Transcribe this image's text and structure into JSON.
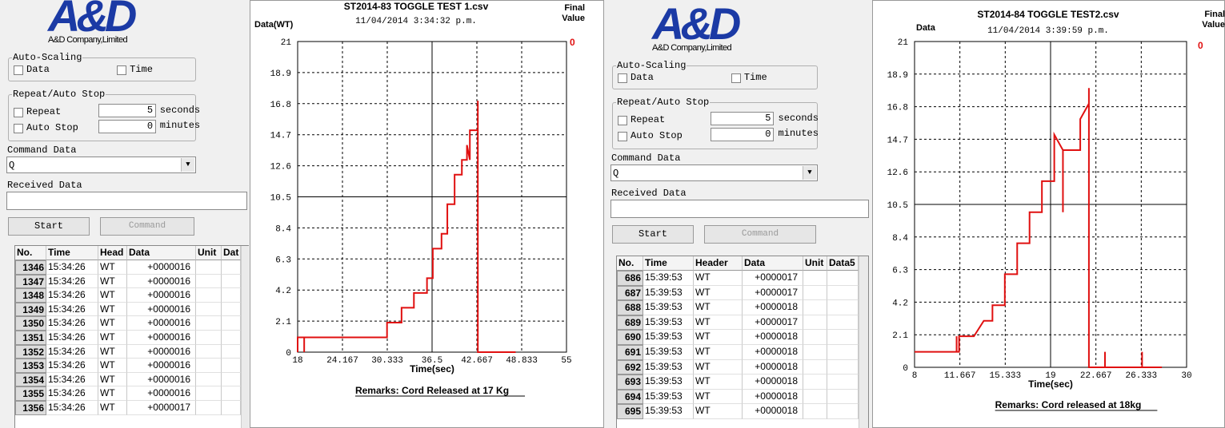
{
  "apps": [
    {
      "logo": "A&D",
      "company": "A&D Company,Limited",
      "auto_scaling": {
        "title": "Auto-Scaling",
        "data": "Data",
        "time": "Time"
      },
      "repeat": {
        "title": "Repeat/Auto Stop",
        "repeat": "Repeat",
        "repeat_value": 5,
        "repeat_unit": "seconds",
        "auto_stop": "Auto Stop",
        "auto_stop_value": 0,
        "auto_stop_unit": "minutes"
      },
      "command_data": {
        "label": "Command Data",
        "value": "Q"
      },
      "received_data": {
        "label": "Received Data"
      },
      "buttons": {
        "start": "Start",
        "command": "Command"
      },
      "table": {
        "columns": [
          "No.",
          "Time",
          "Head",
          "Data",
          "Unit",
          "Dat"
        ],
        "rows": [
          [
            1346,
            "15:34:26",
            "WT",
            "+0000016"
          ],
          [
            1347,
            "15:34:26",
            "WT",
            "+0000016"
          ],
          [
            1348,
            "15:34:26",
            "WT",
            "+0000016"
          ],
          [
            1349,
            "15:34:26",
            "WT",
            "+0000016"
          ],
          [
            1350,
            "15:34:26",
            "WT",
            "+0000016"
          ],
          [
            1351,
            "15:34:26",
            "WT",
            "+0000016"
          ],
          [
            1352,
            "15:34:26",
            "WT",
            "+0000016"
          ],
          [
            1353,
            "15:34:26",
            "WT",
            "+0000016"
          ],
          [
            1354,
            "15:34:26",
            "WT",
            "+0000016"
          ],
          [
            1355,
            "15:34:26",
            "WT",
            "+0000016"
          ],
          [
            1356,
            "15:34:26",
            "WT",
            "+0000017"
          ]
        ]
      },
      "chart": {
        "type": "line",
        "title": "ST2014-83 TOGGLE TEST 1.csv",
        "subtitle": "11/04/2014 3:34:32 p.m.",
        "y_label": "Data(WT)",
        "x_label": "Time(sec)",
        "final_value_label": "Final Value",
        "final_value": 0,
        "remarks": "Remarks: Cord Released at 17 Kg",
        "x": [
          18,
          18,
          18.9,
          18.9,
          18.9,
          30.3,
          30.3,
          32.3,
          32.3,
          34,
          34,
          35.8,
          35.8,
          36.6,
          36.6,
          37.8,
          37.8,
          38.6,
          38.6,
          39.6,
          39.6,
          40.6,
          40.6,
          41.3,
          41.3,
          41.7,
          41.7,
          42.8,
          42.8,
          42.8,
          48
        ],
        "series": [
          {
            "color": "#e01010",
            "values": [
              0,
              1,
              1,
              0,
              1,
              1,
              2,
              2,
              3,
              3,
              4,
              4,
              5,
              5,
              7,
              7,
              8,
              8,
              10,
              10,
              12,
              12,
              13,
              13,
              14,
              13,
              15,
              15,
              17,
              0,
              0
            ]
          }
        ],
        "xlim": [
          18,
          55
        ],
        "xticks": [
          18,
          24.167,
          30.333,
          36.5,
          42.667,
          48.833,
          55
        ],
        "ylim": [
          0,
          21
        ],
        "yticks": [
          0,
          2.1,
          4.2,
          6.3,
          8.4,
          10.5,
          12.6,
          14.7,
          16.8,
          18.9,
          21
        ],
        "grid": true
      }
    },
    {
      "logo": "A&D",
      "company": "A&D Company,Limited",
      "auto_scaling": {
        "title": "Auto-Scaling",
        "data": "Data",
        "time": "Time"
      },
      "repeat": {
        "title": "Repeat/Auto Stop",
        "repeat": "Repeat",
        "repeat_value": 5,
        "repeat_unit": "seconds",
        "auto_stop": "Auto Stop",
        "auto_stop_value": 0,
        "auto_stop_unit": "minutes"
      },
      "command_data": {
        "label": "Command Data",
        "value": "Q"
      },
      "received_data": {
        "label": "Received Data"
      },
      "buttons": {
        "start": "Start",
        "command": "Command"
      },
      "table": {
        "columns": [
          "No.",
          "Time",
          "Header",
          "Data",
          "Unit",
          "Data5"
        ],
        "rows": [
          [
            686,
            "15:39:53",
            "WT",
            "+0000017"
          ],
          [
            687,
            "15:39:53",
            "WT",
            "+0000017"
          ],
          [
            688,
            "15:39:53",
            "WT",
            "+0000018"
          ],
          [
            689,
            "15:39:53",
            "WT",
            "+0000017"
          ],
          [
            690,
            "15:39:53",
            "WT",
            "+0000018"
          ],
          [
            691,
            "15:39:53",
            "WT",
            "+0000018"
          ],
          [
            692,
            "15:39:53",
            "WT",
            "+0000018"
          ],
          [
            693,
            "15:39:53",
            "WT",
            "+0000018"
          ],
          [
            694,
            "15:39:53",
            "WT",
            "+0000018"
          ],
          [
            695,
            "15:39:53",
            "WT",
            "+0000018"
          ]
        ]
      },
      "chart": {
        "type": "line",
        "title": "ST2014-84 TOGGLE TEST2.csv",
        "subtitle": "11/04/2014 3:39:59 p.m.",
        "y_label": "Data",
        "x_label": "Time(sec)",
        "final_value_label": "Final Value",
        "final_value": 0,
        "remarks": "Remarks: Cord released at  18kg",
        "x": [
          8,
          11.4,
          11.4,
          11.4,
          11.6,
          11.6,
          12.8,
          13.6,
          14.3,
          14.3,
          15.3,
          15.3,
          16.3,
          16.3,
          17.3,
          17.3,
          18.3,
          18.3,
          19.3,
          19.3,
          20,
          20,
          20,
          21.4,
          21.4,
          22.1,
          22.1,
          22.1,
          23.4,
          23.4,
          23.4,
          26.4,
          26.4,
          26.4,
          28
        ],
        "series": [
          {
            "color": "#e01010",
            "values": [
              1,
              1,
              2,
              1,
              1,
              2,
              2,
              3,
              3,
              4,
              4,
              6,
              6,
              8,
              8,
              10,
              10,
              12,
              12,
              15,
              14,
              10,
              14,
              14,
              16,
              17,
              18,
              0,
              0,
              1,
              0,
              0,
              1,
              0,
              0
            ]
          }
        ],
        "xlim": [
          8,
          30
        ],
        "xticks": [
          8,
          11.667,
          15.333,
          19,
          22.667,
          26.333,
          30
        ],
        "ylim": [
          0,
          21
        ],
        "yticks": [
          0,
          2.1,
          4.2,
          6.3,
          8.4,
          10.5,
          12.6,
          14.7,
          16.8,
          18.9,
          21
        ],
        "grid": true
      }
    }
  ]
}
